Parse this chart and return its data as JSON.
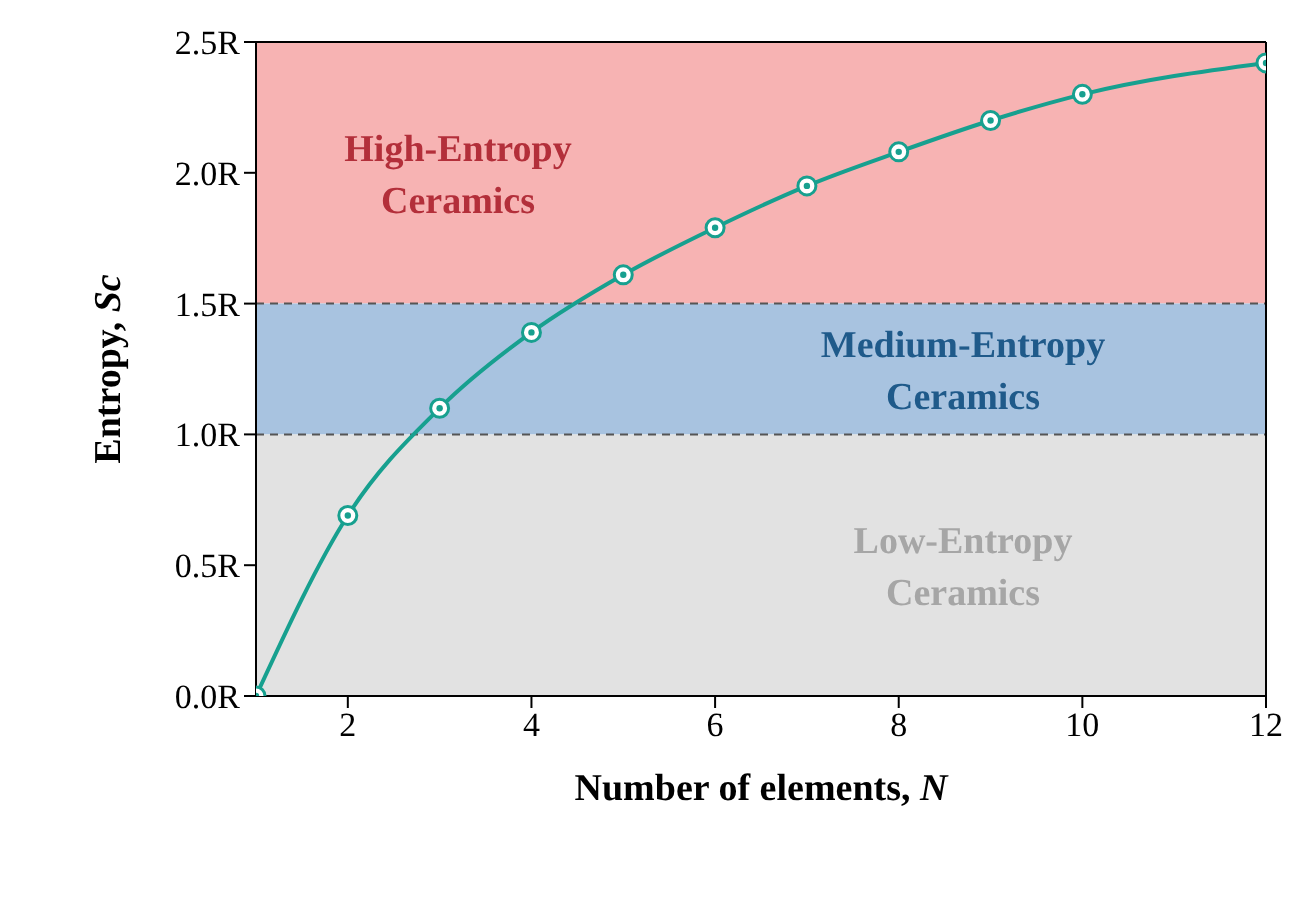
{
  "chart_data": {
    "type": "line",
    "xlabel": "Number of elements, N",
    "ylabel": "Entropy, Sc",
    "x": [
      1,
      2,
      3,
      4,
      5,
      6,
      7,
      8,
      9,
      10,
      12
    ],
    "series": [
      {
        "color": "#17a08f",
        "values": [
          0,
          0.69,
          1.1,
          1.39,
          1.61,
          1.79,
          1.95,
          2.08,
          2.2,
          2.3,
          2.42
        ]
      }
    ],
    "xlim": [
      1,
      12
    ],
    "xticks": [
      2,
      4,
      6,
      8,
      10,
      12
    ],
    "ylim": [
      0,
      2.5
    ],
    "yticks": [
      {
        "value": 0,
        "label": "0.0R"
      },
      {
        "value": 0.5,
        "label": "0.5R"
      },
      {
        "value": 1,
        "label": "1.0R"
      },
      {
        "value": 1.5,
        "label": "1.5R"
      },
      {
        "value": 2,
        "label": "2.0R"
      },
      {
        "value": 2.5,
        "label": "2.5R"
      }
    ],
    "bands": [
      {
        "axis": "y",
        "from": 1.5,
        "to": 2.5,
        "label": "High-Entropy Ceramics",
        "color": "#f7b3b3"
      },
      {
        "axis": "y",
        "from": 1,
        "to": 1.5,
        "label": "Medium-Entropy Ceramics",
        "color": "#a8c3e0"
      },
      {
        "axis": "y",
        "from": 0,
        "to": 1,
        "label": "Low-Entropy Ceramics",
        "color": "#e2e2e2"
      }
    ],
    "ref_lines": [
      {
        "axis": "y",
        "value": 1.5,
        "color": "#555555",
        "line_style": "dashed"
      },
      {
        "axis": "y",
        "value": 1,
        "color": "#555555",
        "line_style": "dashed"
      }
    ],
    "grid": false,
    "legend": false,
    "marker": "circle",
    "line_style": "solid"
  }
}
